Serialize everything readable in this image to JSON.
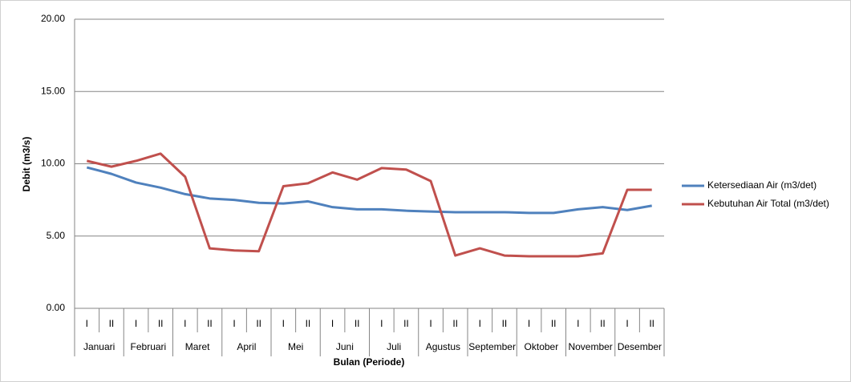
{
  "chart_data": {
    "type": "line",
    "y_label": "Debit (m3/s)",
    "x_label": "Bulan (Periode)",
    "categories": [
      "I",
      "II",
      "I",
      "II",
      "I",
      "II",
      "I",
      "II",
      "I",
      "II",
      "I",
      "II",
      "I",
      "II",
      "I",
      "II",
      "I",
      "II",
      "I",
      "II",
      "I",
      "II",
      "I",
      "II"
    ],
    "groups": [
      "Januari",
      "Februari",
      "Maret",
      "April",
      "Mei",
      "Juni",
      "Juli",
      "Agustus",
      "September",
      "Oktober",
      "November",
      "Desember"
    ],
    "series": [
      {
        "name": "Ketersediaan Air (m3/det)",
        "color": "#4f81bd",
        "values": [
          9.75,
          9.3,
          8.7,
          8.35,
          7.9,
          7.6,
          7.5,
          7.3,
          7.25,
          7.4,
          7.0,
          6.85,
          6.85,
          6.75,
          6.7,
          6.65,
          6.65,
          6.65,
          6.6,
          6.6,
          6.85,
          7.0,
          6.8,
          7.1
        ]
      },
      {
        "name": "Kebutuhan Air Total (m3/det)",
        "color": "#c0504d",
        "values": [
          10.2,
          9.8,
          10.2,
          10.7,
          9.1,
          4.15,
          4.0,
          3.95,
          8.45,
          8.65,
          9.4,
          8.9,
          9.7,
          9.6,
          8.8,
          3.65,
          4.15,
          3.65,
          3.6,
          3.6,
          3.6,
          3.8,
          8.2,
          8.2
        ]
      }
    ],
    "ylim": [
      0,
      20
    ],
    "yticks": [
      {
        "value": 0,
        "label": "0.00"
      },
      {
        "value": 5,
        "label": "5.00"
      },
      {
        "value": 10,
        "label": "10.00"
      },
      {
        "value": 15,
        "label": "15.00"
      },
      {
        "value": 20,
        "label": "20.00"
      }
    ],
    "grid": true,
    "legend": "right"
  }
}
